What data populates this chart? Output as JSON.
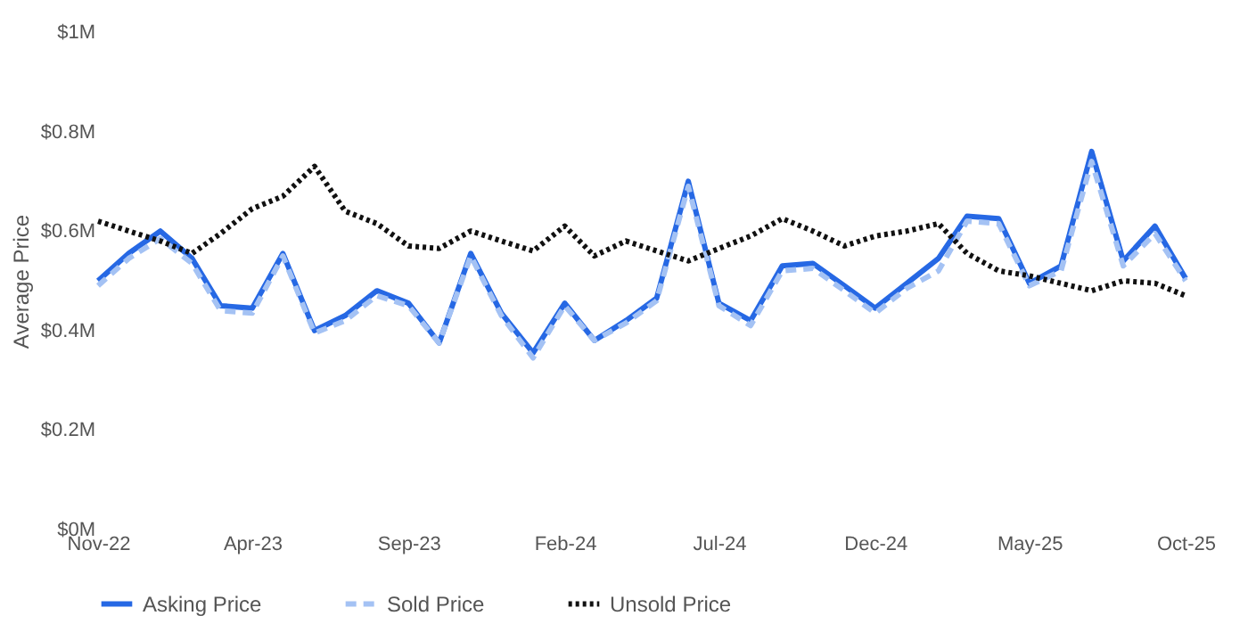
{
  "chart_data": {
    "type": "line",
    "ylabel": "Average Price",
    "x": [
      "2022-11",
      "2022-12",
      "2023-01",
      "2023-02",
      "2023-03",
      "2023-04",
      "2023-05",
      "2023-06",
      "2023-07",
      "2023-08",
      "2023-09",
      "2023-10",
      "2023-11",
      "2023-12",
      "2024-01",
      "2024-02",
      "2024-03",
      "2024-04",
      "2024-05",
      "2024-06",
      "2024-07",
      "2024-08",
      "2024-09",
      "2024-10",
      "2024-11",
      "2024-12",
      "2025-01",
      "2025-02",
      "2025-03",
      "2025-04",
      "2025-05",
      "2025-06",
      "2025-07",
      "2025-08",
      "2025-09",
      "2025-10"
    ],
    "series": [
      {
        "name": "Asking Price",
        "color": "#2668e4",
        "line_style": "solid",
        "values": [
          0.5,
          0.555,
          0.6,
          0.545,
          0.45,
          0.445,
          0.555,
          0.4,
          0.43,
          0.48,
          0.455,
          0.375,
          0.555,
          0.435,
          0.355,
          0.455,
          0.38,
          0.42,
          0.465,
          0.7,
          0.455,
          0.42,
          0.53,
          0.535,
          0.49,
          0.445,
          0.495,
          0.545,
          0.63,
          0.625,
          0.495,
          0.53,
          0.76,
          0.54,
          0.61,
          0.505
        ]
      },
      {
        "name": "Sold Price",
        "color": "#a4c2f4",
        "line_style": "dashed",
        "values": [
          0.49,
          0.545,
          0.585,
          0.535,
          0.44,
          0.435,
          0.55,
          0.395,
          0.42,
          0.47,
          0.45,
          0.375,
          0.55,
          0.43,
          0.345,
          0.45,
          0.38,
          0.415,
          0.46,
          0.69,
          0.45,
          0.41,
          0.52,
          0.525,
          0.48,
          0.435,
          0.485,
          0.52,
          0.62,
          0.615,
          0.49,
          0.52,
          0.74,
          0.53,
          0.595,
          0.5
        ]
      },
      {
        "name": "Unsold Price",
        "color": "#111111",
        "line_style": "dotted",
        "values": [
          0.62,
          0.6,
          0.58,
          0.555,
          0.595,
          0.645,
          0.67,
          0.73,
          0.64,
          0.615,
          0.57,
          0.565,
          0.6,
          0.58,
          0.56,
          0.61,
          0.55,
          0.58,
          0.56,
          0.54,
          0.565,
          0.59,
          0.625,
          0.6,
          0.57,
          0.59,
          0.6,
          0.615,
          0.555,
          0.52,
          0.51,
          0.495,
          0.48,
          0.5,
          0.495,
          0.47
        ]
      }
    ],
    "xlim": [
      "2022-11",
      "2025-10"
    ],
    "xticks": [
      {
        "value": "2022-11",
        "label": "Nov-22"
      },
      {
        "value": "2023-04",
        "label": "Apr-23"
      },
      {
        "value": "2023-09",
        "label": "Sep-23"
      },
      {
        "value": "2024-02",
        "label": "Feb-24"
      },
      {
        "value": "2024-07",
        "label": "Jul-24"
      },
      {
        "value": "2024-12",
        "label": "Dec-24"
      },
      {
        "value": "2025-05",
        "label": "May-25"
      },
      {
        "value": "2025-10",
        "label": "Oct-25"
      }
    ],
    "ylim": [
      0,
      1
    ],
    "yticks": [
      {
        "value": 0,
        "label": "$0M"
      },
      {
        "value": 0.2,
        "label": "$0.2M"
      },
      {
        "value": 0.4,
        "label": "$0.4M"
      },
      {
        "value": 0.6,
        "label": "$0.6M"
      },
      {
        "value": 0.8,
        "label": "$0.8M"
      },
      {
        "value": 1,
        "label": "$1M"
      }
    ],
    "grid": false,
    "legend": "bottom",
    "marker": "none"
  }
}
